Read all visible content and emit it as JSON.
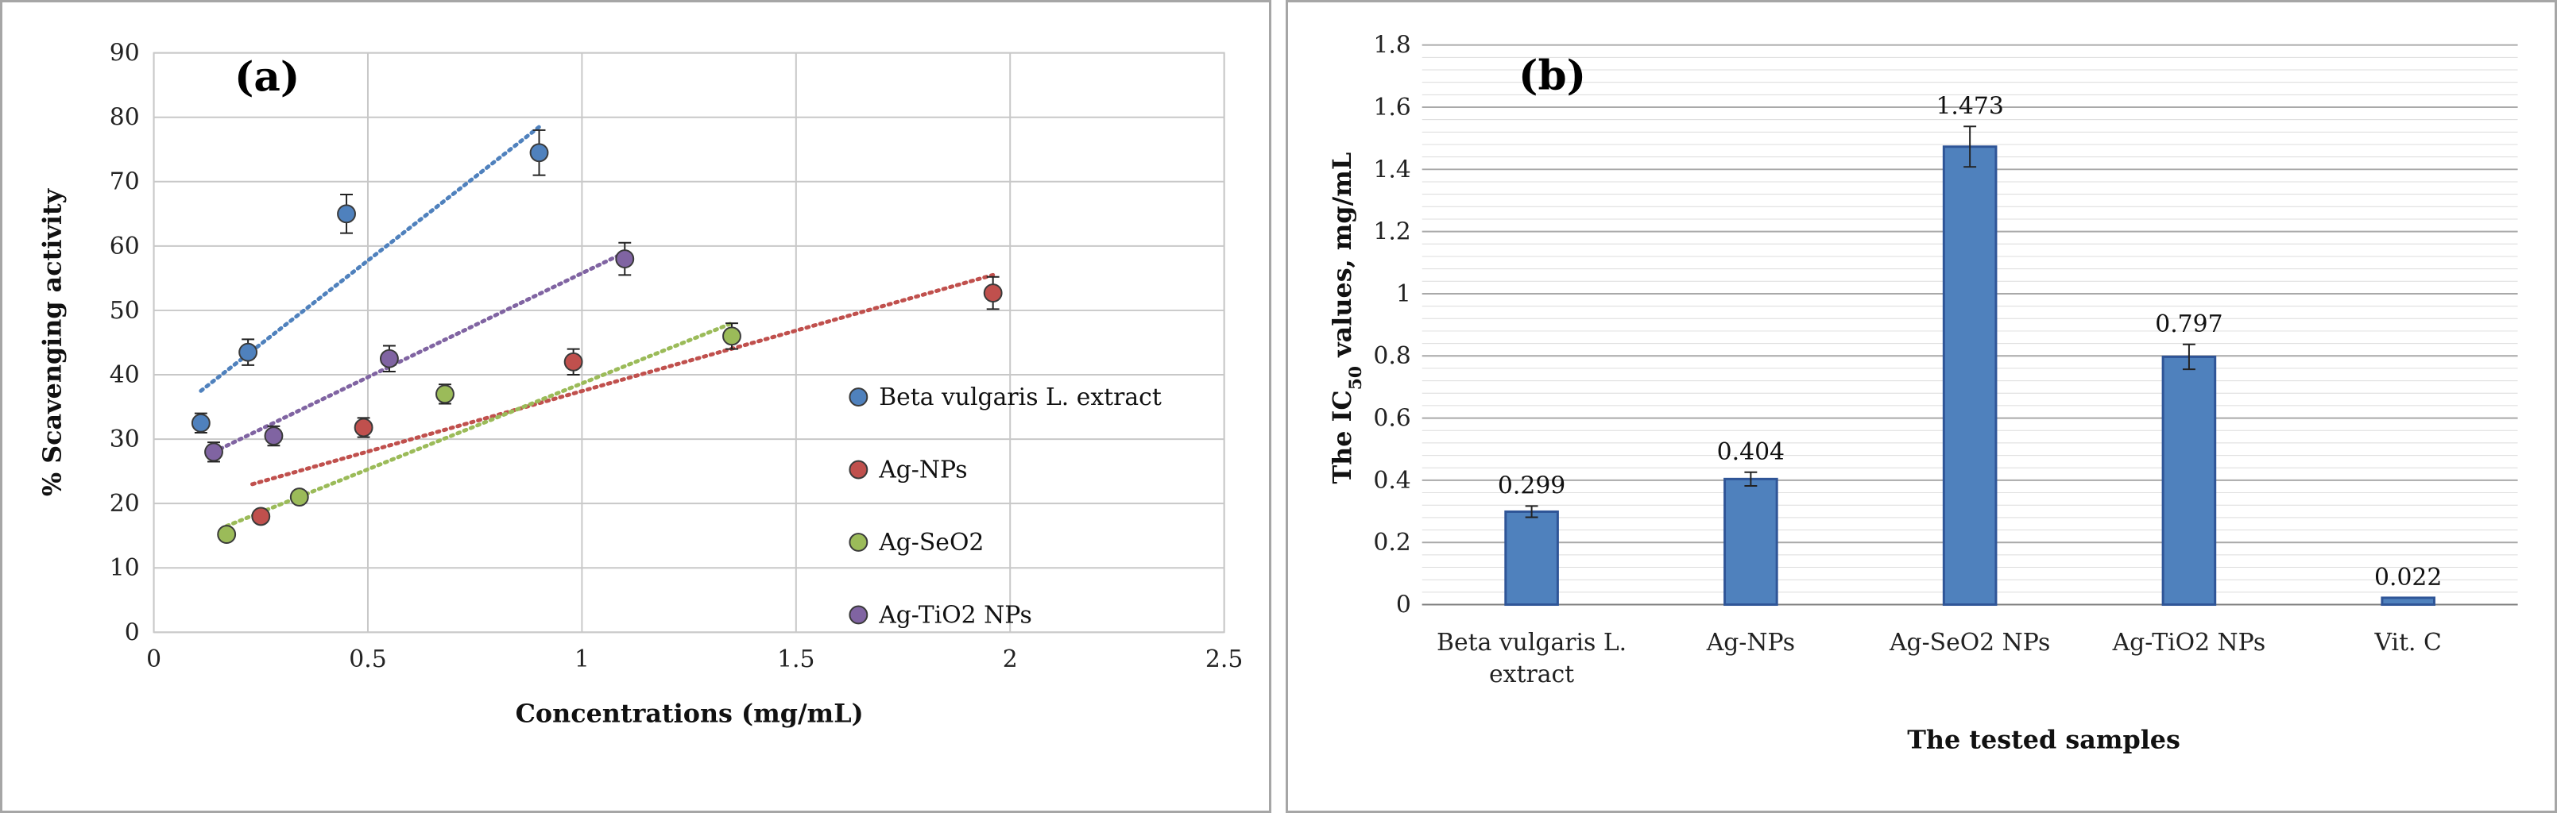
{
  "chart_data": [
    {
      "type": "scatter",
      "panel_label": "(a)",
      "xlabel": "Concentrations (mg/mL)",
      "ylabel": "% Scavenging activity",
      "xlim": [
        0,
        2.5
      ],
      "ylim": [
        0,
        90
      ],
      "x_ticks": [
        "0",
        "0.5",
        "1",
        "1.5",
        "2",
        "2.5"
      ],
      "y_ticks": [
        "0",
        "10",
        "20",
        "30",
        "40",
        "50",
        "60",
        "70",
        "80",
        "90"
      ],
      "grid": true,
      "legend_position": "right",
      "series": [
        {
          "name": "Beta vulgaris L. extract",
          "color": "#4f81bd",
          "x": [
            0.11,
            0.22,
            0.45,
            0.9
          ],
          "y": [
            32.5,
            43.5,
            65,
            74.5
          ],
          "err": [
            1.5,
            2,
            3,
            3.5
          ],
          "trend": [
            [
              0.11,
              37.5
            ],
            [
              0.9,
              78.5
            ]
          ]
        },
        {
          "name": "Ag-NPs",
          "color": "#c0504d",
          "x": [
            0.25,
            0.49,
            0.98,
            1.96
          ],
          "y": [
            18,
            31.8,
            42,
            52.7
          ],
          "err": [
            0,
            1.5,
            2,
            2.5
          ],
          "trend": [
            [
              0.23,
              23
            ],
            [
              1.96,
              55.5
            ]
          ]
        },
        {
          "name": "Ag-SeO2",
          "color": "#9bbb59",
          "x": [
            0.17,
            0.34,
            0.68,
            1.35
          ],
          "y": [
            15.2,
            21,
            37,
            46
          ],
          "err": [
            0,
            0,
            1.5,
            2
          ],
          "trend": [
            [
              0.17,
              16.5
            ],
            [
              1.35,
              48
            ]
          ]
        },
        {
          "name": "Ag-TiO2 NPs",
          "color": "#8064a2",
          "x": [
            0.14,
            0.28,
            0.55,
            1.1
          ],
          "y": [
            28,
            30.5,
            42.5,
            58
          ],
          "err": [
            1.5,
            1.5,
            2,
            2.5
          ],
          "trend": [
            [
              0.14,
              28
            ],
            [
              1.1,
              59
            ]
          ]
        }
      ]
    },
    {
      "type": "bar",
      "panel_label": "(b)",
      "xlabel": "The tested samples",
      "ylabel": "The IC50 values, mg/mL",
      "ylabel_parts": {
        "pre": "The IC",
        "sub": "50",
        "post": " values, mg/mL"
      },
      "ylim": [
        0,
        1.8
      ],
      "y_ticks": [
        "0",
        "0.2",
        "0.4",
        "0.6",
        "0.8",
        "1",
        "1.2",
        "1.4",
        "1.6",
        "1.8"
      ],
      "categories": [
        "Beta vulgaris L. extract",
        "Ag-NPs",
        "Ag-SeO2 NPs",
        "Ag-TiO2 NPs",
        "Vit. C"
      ],
      "category_lines": [
        [
          "Beta vulgaris L.",
          "extract"
        ],
        [
          "Ag-NPs"
        ],
        [
          "Ag-SeO2 NPs"
        ],
        [
          "Ag-TiO2 NPs"
        ],
        [
          "Vit. C"
        ]
      ],
      "values": [
        0.299,
        0.404,
        1.473,
        0.797,
        0.022
      ],
      "value_labels": [
        "0.299",
        "0.404",
        "1.473",
        "0.797",
        "0.022"
      ],
      "errors": [
        0.018,
        0.022,
        0.065,
        0.04,
        0
      ],
      "bar_color": "#4f81bd",
      "bar_edge": "#2f5597",
      "grid": true
    }
  ]
}
